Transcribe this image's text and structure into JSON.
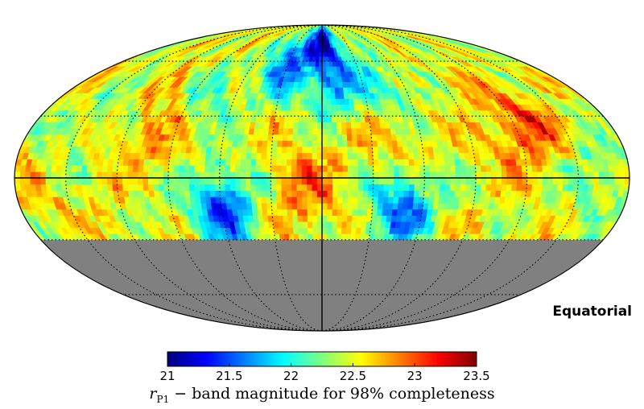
{
  "chart_data": {
    "type": "heatmap",
    "projection": "mollweide",
    "coordinate_system": "Equatorial",
    "colorbar": {
      "min": 21,
      "max": 23.5,
      "ticks": [
        21,
        21.5,
        22,
        22.5,
        23,
        23.5
      ],
      "tick_labels": [
        "21",
        "21.5",
        "22",
        "22.5",
        "23",
        "23.5"
      ],
      "label_symbol": "r",
      "label_sub": "P1",
      "label_rest": " − band magnitude for 98% completeness",
      "colormap": [
        "#00007f",
        "#0000ff",
        "#007fff",
        "#00ffff",
        "#7fff7f",
        "#ffff00",
        "#ff7f00",
        "#ff0000",
        "#7f0000"
      ]
    },
    "footprint_dec_limit": -30,
    "no_data_color": "#808080",
    "typical_value": 22.5,
    "regions": [
      {
        "lon": -10,
        "lat": 50,
        "value": 21.8
      },
      {
        "lon": 0,
        "lat": 75,
        "value": 21.4
      },
      {
        "lon": 30,
        "lat": 60,
        "value": 21.6
      },
      {
        "lon": -45,
        "lat": 45,
        "value": 22.0
      },
      {
        "lon": 60,
        "lat": -15,
        "value": 21.5
      },
      {
        "lon": -48,
        "lat": -15,
        "value": 21.6
      },
      {
        "lon": -125,
        "lat": 25,
        "value": 23.1
      },
      {
        "lon": 10,
        "lat": -5,
        "value": 22.9
      },
      {
        "lon": -40,
        "lat": 20,
        "value": 22.8
      },
      {
        "lon": 100,
        "lat": 25,
        "value": 22.9
      },
      {
        "lon": 150,
        "lat": 30,
        "value": 22.3
      },
      {
        "lon": 160,
        "lat": -10,
        "value": 22.6
      },
      {
        "lon": -160,
        "lat": 0,
        "value": 22.2
      },
      {
        "lon": 80,
        "lat": 40,
        "value": 22.1
      }
    ]
  }
}
